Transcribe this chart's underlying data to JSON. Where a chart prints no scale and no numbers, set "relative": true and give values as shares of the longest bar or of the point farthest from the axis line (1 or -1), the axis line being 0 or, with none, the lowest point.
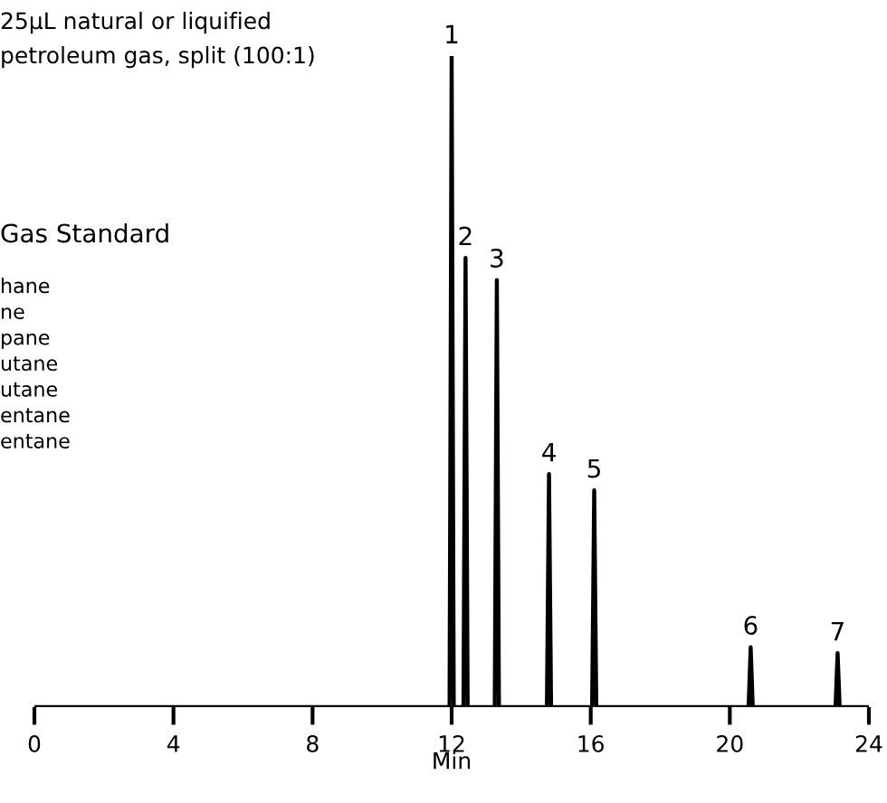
{
  "chart_data": {
    "type": "line",
    "relative": true,
    "xlabel": "Min",
    "xlim": [
      0,
      24
    ],
    "xticks": [
      0,
      4,
      8,
      12,
      16,
      20,
      24
    ],
    "grid": false,
    "legend": false,
    "marker": "none",
    "line_style": "solid",
    "x": [
      0,
      11.94,
      12.0,
      12.06,
      12.34,
      12.4,
      12.46,
      13.24,
      13.3,
      13.36,
      14.74,
      14.8,
      14.86,
      16.04,
      16.1,
      16.16,
      20.54,
      20.6,
      20.66,
      23.04,
      23.1,
      23.16,
      24
    ],
    "series": [
      {
        "color": "#000000",
        "values": [
          0,
          0,
          1,
          0,
          0,
          0.69,
          0,
          0,
          0.656,
          0,
          0,
          0.358,
          0,
          0,
          0.333,
          0,
          0,
          0.092,
          0,
          0,
          0.083,
          0,
          0
        ]
      }
    ],
    "annotations": [
      "25µL natural or liquified",
      "petroleum gas, split (100:1)",
      "Gas Standard",
      "hane",
      "ne",
      "pane",
      "utane",
      "utane",
      "entane",
      "entane",
      {
        "text": "1",
        "x": 12.0,
        "y": 1
      },
      {
        "text": "2",
        "x": 12.4,
        "y": 0.69
      },
      {
        "text": "3",
        "x": 13.3,
        "y": 0.656
      },
      {
        "text": "4",
        "x": 14.8,
        "y": 0.358
      },
      {
        "text": "5",
        "x": 16.1,
        "y": 0.333
      },
      {
        "text": "6",
        "x": 20.6,
        "y": 0.092
      },
      {
        "text": "7",
        "x": 23.1,
        "y": 0.083
      }
    ]
  }
}
